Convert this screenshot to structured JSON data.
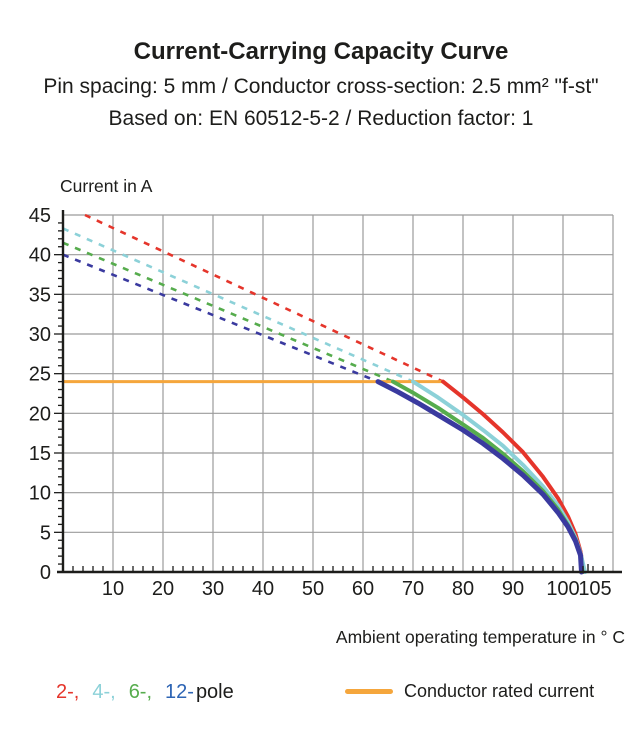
{
  "header": {
    "title": "Current-Carrying Capacity Curve",
    "subtitle1": "Pin spacing: 5 mm / Conductor cross-section: 2.5 mm² \"f-st\"",
    "subtitle2": "Based on: EN 60512-5-2 / Reduction factor: 1"
  },
  "chart_data": {
    "type": "line",
    "title": "Current-Carrying Capacity Curve",
    "ylabel": "Current in A",
    "xlabel": "Ambient operating temperature in ° C",
    "xlim": [
      0,
      110
    ],
    "ylim": [
      0,
      45
    ],
    "grid": true,
    "grid_color": "#9b9b9b",
    "axis_color": "#1d1d1b",
    "y_major_ticks": [
      0,
      5,
      10,
      15,
      20,
      25,
      30,
      35,
      40,
      45
    ],
    "x_major_ticks": [
      {
        "t": 10,
        "label": "10"
      },
      {
        "t": 20,
        "label": "20"
      },
      {
        "t": 30,
        "label": "30"
      },
      {
        "t": 40,
        "label": "40"
      },
      {
        "t": 50,
        "label": "50"
      },
      {
        "t": 60,
        "label": "60"
      },
      {
        "t": 70,
        "label": "70"
      },
      {
        "t": 80,
        "label": "80"
      },
      {
        "t": 90,
        "label": "90"
      },
      {
        "t": 100,
        "label": "100"
      },
      {
        "t": 105,
        "label": "105",
        "dx": 7
      }
    ],
    "x_minor_step": 2,
    "y_minor_step": 1,
    "rated_current": {
      "label": "Conductor rated current",
      "value": 24,
      "x_start": 0,
      "x_end": 76,
      "color": "#F5A63C"
    },
    "legend_pole_suffix": "pole",
    "series": [
      {
        "name": "2-pole",
        "legend_label": "2-",
        "color": "#E5352B",
        "stroke_width": 4,
        "dashed_points": [
          [
            4.4,
            45
          ],
          [
            76,
            24
          ]
        ],
        "solid_points": [
          [
            76,
            24
          ],
          [
            80,
            22
          ],
          [
            84,
            19.9
          ],
          [
            88,
            17.6
          ],
          [
            92,
            15.1
          ],
          [
            96,
            12
          ],
          [
            99,
            9.3
          ],
          [
            101,
            7
          ],
          [
            102.5,
            4.8
          ],
          [
            103.5,
            2.6
          ],
          [
            104.2,
            0
          ]
        ]
      },
      {
        "name": "4-pole",
        "legend_label": "4-",
        "color": "#8CD1D8",
        "stroke_width": 4,
        "dashed_points": [
          [
            0,
            43.3
          ],
          [
            70,
            24
          ]
        ],
        "solid_points": [
          [
            70,
            24
          ],
          [
            75,
            22
          ],
          [
            80,
            19.8
          ],
          [
            84,
            17.9
          ],
          [
            88,
            15.9
          ],
          [
            92,
            13.5
          ],
          [
            96,
            10.8
          ],
          [
            99,
            8.4
          ],
          [
            101,
            6.3
          ],
          [
            102.5,
            4.3
          ],
          [
            103.5,
            2.4
          ],
          [
            104.4,
            0
          ]
        ]
      },
      {
        "name": "6-pole",
        "legend_label": "6-",
        "color": "#56AC4D",
        "stroke_width": 4,
        "dashed_points": [
          [
            0,
            41.5
          ],
          [
            66,
            24
          ]
        ],
        "solid_points": [
          [
            66,
            24
          ],
          [
            70,
            22.6
          ],
          [
            75,
            20.7
          ],
          [
            80,
            18.6
          ],
          [
            84,
            16.9
          ],
          [
            88,
            14.9
          ],
          [
            92,
            12.7
          ],
          [
            96,
            10.2
          ],
          [
            99,
            7.9
          ],
          [
            101,
            5.9
          ],
          [
            102.5,
            4.1
          ],
          [
            103.5,
            2.2
          ],
          [
            103.9,
            0
          ]
        ]
      },
      {
        "name": "12-pole",
        "legend_label": "12-",
        "color": "#3A3A9F",
        "label_color": "#2D64B4",
        "stroke_width": 5,
        "dashed_points": [
          [
            0,
            40
          ],
          [
            63,
            24
          ]
        ],
        "solid_points": [
          [
            63,
            24
          ],
          [
            67,
            22.7
          ],
          [
            71,
            21.3
          ],
          [
            75,
            19.8
          ],
          [
            80,
            17.9
          ],
          [
            84,
            16.2
          ],
          [
            88,
            14.3
          ],
          [
            92,
            12.2
          ],
          [
            96,
            9.8
          ],
          [
            99,
            7.5
          ],
          [
            101,
            5.7
          ],
          [
            102.5,
            3.9
          ],
          [
            103.5,
            2.1
          ],
          [
            103.7,
            0
          ]
        ]
      }
    ]
  }
}
